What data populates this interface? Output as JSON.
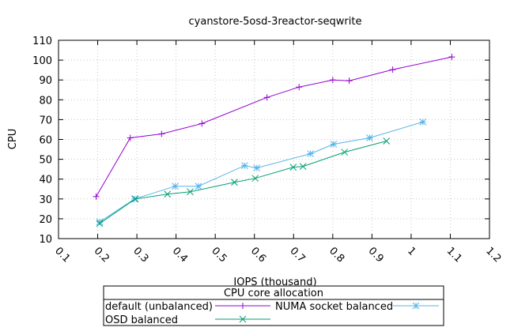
{
  "chart_data": {
    "type": "line",
    "title": "cyanstore-5osd-3reactor-seqwrite",
    "xlabel": "IOPS (thousand)",
    "ylabel": "CPU",
    "xlim": [
      0.1,
      1.2
    ],
    "ylim": [
      10,
      110
    ],
    "xticks": [
      "0.1",
      "0.2",
      "0.3",
      "0.4",
      "0.5",
      "0.6",
      "0.7",
      "0.8",
      "0.9",
      "1",
      "1.1",
      "1.2"
    ],
    "yticks": [
      "10",
      "20",
      "30",
      "40",
      "50",
      "60",
      "70",
      "80",
      "90",
      "100",
      "110"
    ],
    "grid": true,
    "legend_title": "CPU core allocation",
    "legend_position": "bottom",
    "series": [
      {
        "name": "default (unbalanced)",
        "color": "#9400d3",
        "marker": "plus",
        "x": [
          0.196,
          0.283,
          0.363,
          0.466,
          0.632,
          0.714,
          0.8,
          0.842,
          0.953,
          1.104
        ],
        "y": [
          31.2,
          60.8,
          62.8,
          68.0,
          81.2,
          86.4,
          90.0,
          89.6,
          95.2,
          101.6
        ]
      },
      {
        "name": "NUMA socket balanced",
        "color": "#56b4e9",
        "marker": "star",
        "x": [
          0.205,
          0.294,
          0.398,
          0.457,
          0.575,
          0.606,
          0.743,
          0.802,
          0.894,
          1.03
        ],
        "y": [
          18.4,
          30.0,
          36.4,
          36.4,
          46.8,
          45.6,
          52.8,
          57.6,
          60.8,
          68.8
        ]
      },
      {
        "name": "OSD balanced",
        "color": "#009e73",
        "marker": "cross",
        "x": [
          0.205,
          0.296,
          0.378,
          0.436,
          0.549,
          0.602,
          0.699,
          0.724,
          0.83,
          0.937
        ],
        "y": [
          17.6,
          30.0,
          32.4,
          33.6,
          38.4,
          40.4,
          46.0,
          46.4,
          53.6,
          59.2
        ]
      }
    ]
  }
}
